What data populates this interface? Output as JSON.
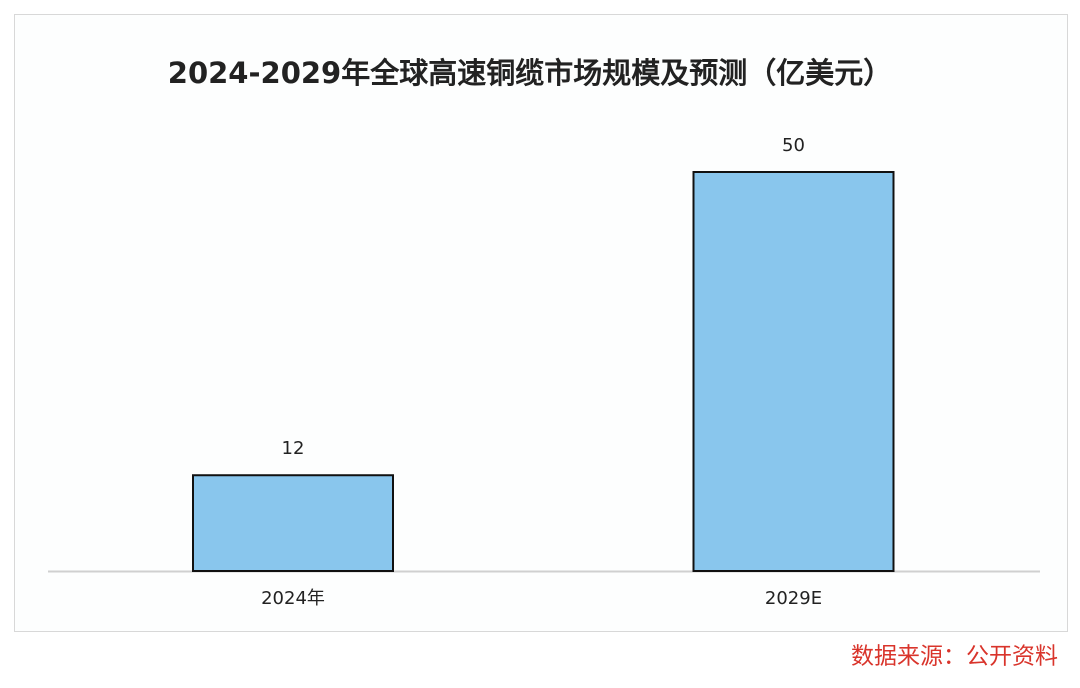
{
  "chart_data": {
    "type": "bar",
    "title": "2024-2029年全球高速铜缆市场规模及预测（亿美元）",
    "categories": [
      "2024年",
      "2029E"
    ],
    "values": [
      12,
      50
    ],
    "color": "#89c6ed",
    "source": "数据来源：公开资料"
  }
}
